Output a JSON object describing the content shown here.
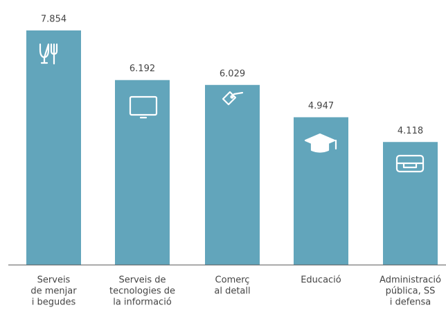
{
  "chart_data": {
    "type": "bar",
    "categories": [
      [
        "Serveis",
        "de menjar",
        "i begudes"
      ],
      [
        "Serveis de",
        "tecnologies de",
        "la informació"
      ],
      [
        "Comerç",
        "al detall"
      ],
      [
        "Educació"
      ],
      [
        "Administració",
        "pública, SS",
        "i defensa"
      ]
    ],
    "values": [
      7854,
      6192,
      6029,
      4947,
      4118
    ],
    "value_labels": [
      "7.854",
      "6.192",
      "6.029",
      "4.947",
      "4.118"
    ],
    "color": "#62a5bb"
  }
}
